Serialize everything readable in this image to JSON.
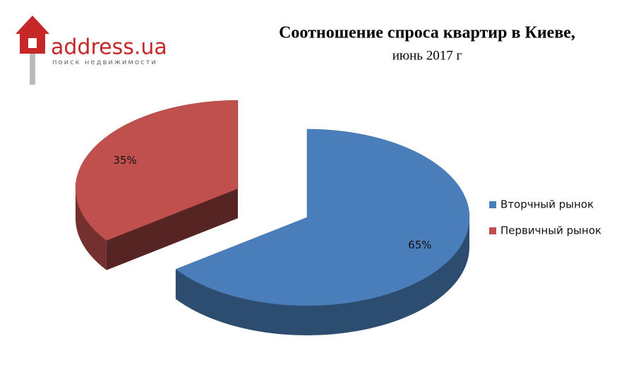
{
  "logo": {
    "name": "address.ua",
    "tagline": "поиск недвижимости"
  },
  "chart_data": {
    "type": "pie",
    "title": "Соотношение спроса квартир в Киеве,",
    "subtitle": "июнь 2017 г",
    "labels": [
      "Вторчный рынок",
      "Первичный рынок"
    ],
    "values": [
      65,
      35
    ],
    "value_labels": [
      "65%",
      "35%"
    ],
    "colors": [
      "#4a7ebb",
      "#c0504d"
    ],
    "legend": "right"
  }
}
